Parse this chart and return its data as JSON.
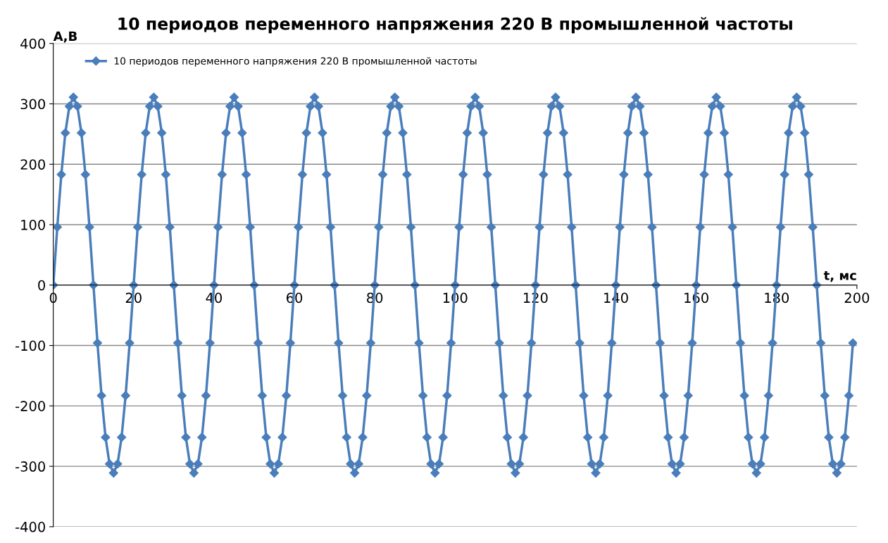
{
  "chart_data": {
    "type": "line",
    "title": "10 периодов переменного напряжения 220 В промышленной частоты",
    "xlabel": "t, мс",
    "ylabel": "А,В",
    "x": [
      0,
      1,
      2,
      3,
      4,
      5,
      6,
      7,
      8,
      9,
      10,
      11,
      12,
      13,
      14,
      15,
      16,
      17,
      18,
      19,
      20,
      21,
      22,
      23,
      24,
      25,
      26,
      27,
      28,
      29,
      30,
      31,
      32,
      33,
      34,
      35,
      36,
      37,
      38,
      39,
      40,
      41,
      42,
      43,
      44,
      45,
      46,
      47,
      48,
      49,
      50,
      51,
      52,
      53,
      54,
      55,
      56,
      57,
      58,
      59,
      60,
      61,
      62,
      63,
      64,
      65,
      66,
      67,
      68,
      69,
      70,
      71,
      72,
      73,
      74,
      75,
      76,
      77,
      78,
      79,
      80,
      81,
      82,
      83,
      84,
      85,
      86,
      87,
      88,
      89,
      90,
      91,
      92,
      93,
      94,
      95,
      96,
      97,
      98,
      99,
      100,
      101,
      102,
      103,
      104,
      105,
      106,
      107,
      108,
      109,
      110,
      111,
      112,
      113,
      114,
      115,
      116,
      117,
      118,
      119,
      120,
      121,
      122,
      123,
      124,
      125,
      126,
      127,
      128,
      129,
      130,
      131,
      132,
      133,
      134,
      135,
      136,
      137,
      138,
      139,
      140,
      141,
      142,
      143,
      144,
      145,
      146,
      147,
      148,
      149,
      150,
      151,
      152,
      153,
      154,
      155,
      156,
      157,
      158,
      159,
      160,
      161,
      162,
      163,
      164,
      165,
      166,
      167,
      168,
      169,
      170,
      171,
      172,
      173,
      174,
      175,
      176,
      177,
      178,
      179,
      180,
      181,
      182,
      183,
      184,
      185,
      186,
      187,
      188,
      189,
      190,
      191,
      192,
      193,
      194,
      195,
      196,
      197,
      198,
      199
    ],
    "series": [
      {
        "name": "10 периодов переменного напряжения 220 В промышленной частоты",
        "color": "#4a7ebb",
        "values": [
          0,
          96,
          183,
          252,
          296,
          311,
          296,
          252,
          183,
          96,
          0,
          -96,
          -183,
          -252,
          -296,
          -311,
          -296,
          -252,
          -183,
          -96,
          0,
          96,
          183,
          252,
          296,
          311,
          296,
          252,
          183,
          96,
          0,
          -96,
          -183,
          -252,
          -296,
          -311,
          -296,
          -252,
          -183,
          -96,
          0,
          96,
          183,
          252,
          296,
          311,
          296,
          252,
          183,
          96,
          0,
          -96,
          -183,
          -252,
          -296,
          -311,
          -296,
          -252,
          -183,
          -96,
          0,
          96,
          183,
          252,
          296,
          311,
          296,
          252,
          183,
          96,
          0,
          -96,
          -183,
          -252,
          -296,
          -311,
          -296,
          -252,
          -183,
          -96,
          0,
          96,
          183,
          252,
          296,
          311,
          296,
          252,
          183,
          96,
          0,
          -96,
          -183,
          -252,
          -296,
          -311,
          -296,
          -252,
          -183,
          -96,
          0,
          96,
          183,
          252,
          296,
          311,
          296,
          252,
          183,
          96,
          0,
          -96,
          -183,
          -252,
          -296,
          -311,
          -296,
          -252,
          -183,
          -96,
          0,
          96,
          183,
          252,
          296,
          311,
          296,
          252,
          183,
          96,
          0,
          -96,
          -183,
          -252,
          -296,
          -311,
          -296,
          -252,
          -183,
          -96,
          0,
          96,
          183,
          252,
          296,
          311,
          296,
          252,
          183,
          96,
          0,
          -96,
          -183,
          -252,
          -296,
          -311,
          -296,
          -252,
          -183,
          -96,
          0,
          96,
          183,
          252,
          296,
          311,
          296,
          252,
          183,
          96,
          0,
          -96,
          -183,
          -252,
          -296,
          -311,
          -296,
          -252,
          -183,
          -96,
          0,
          96,
          183,
          252,
          296,
          311,
          296,
          252,
          183,
          96,
          0,
          -96,
          -183,
          -252,
          -296,
          -311,
          -296,
          -252,
          -183,
          -96
        ]
      }
    ],
    "xlim": [
      0,
      200
    ],
    "xticks": [
      0,
      20,
      40,
      60,
      80,
      100,
      120,
      140,
      160,
      180,
      200
    ],
    "ylim": [
      -400,
      400
    ],
    "yticks": [
      -400,
      -300,
      -200,
      -100,
      0,
      100,
      200,
      300,
      400
    ],
    "grid": "y",
    "legend": "top left",
    "marker": "diamond",
    "line_style": "solid"
  }
}
